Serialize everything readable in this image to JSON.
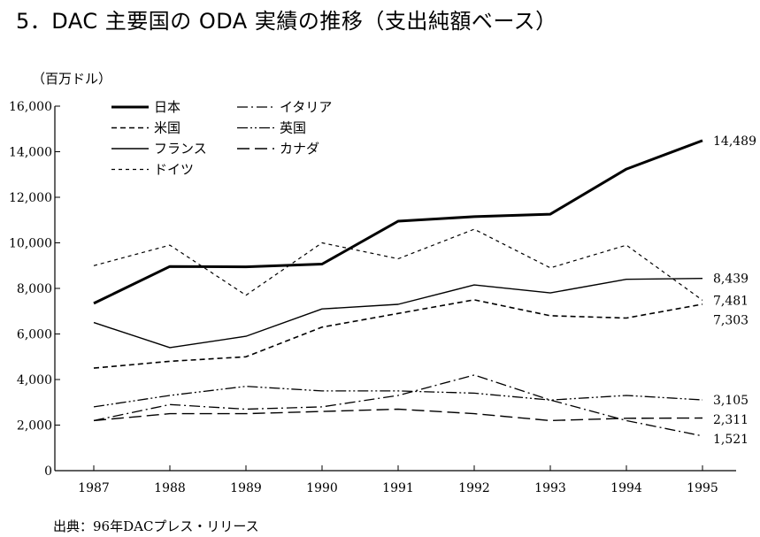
{
  "page": {
    "title": "5．DAC 主要国の ODA 実績の推移（支出純額ベース）",
    "unit_label": "（百万ドル）",
    "source": "出典：96年DACプレス・リリース"
  },
  "chart_data": {
    "type": "line",
    "title": "5．DAC 主要国の ODA 実績の推移（支出純額ベース）",
    "ylabel": "（百万ドル）",
    "xlabel": "",
    "x": [
      1987,
      1988,
      1989,
      1990,
      1991,
      1992,
      1993,
      1994,
      1995
    ],
    "xtick_labels": [
      "1987",
      "1988",
      "1989",
      "1990",
      "1991",
      "1992",
      "1993",
      "1994",
      "1995"
    ],
    "ylim": [
      0,
      16000
    ],
    "yticks": [
      0,
      2000,
      4000,
      6000,
      8000,
      10000,
      12000,
      14000,
      16000
    ],
    "ytick_labels": [
      "0",
      "2,000",
      "4,000",
      "6,000",
      "8,000",
      "10,000",
      "12,000",
      "14,000",
      "16,000"
    ],
    "grid": false,
    "legend_position": "top-left",
    "series": [
      {
        "name": "日本",
        "style": "thick-solid",
        "end_label": "14,489",
        "values": [
          7342,
          8965,
          8949,
          9069,
          10952,
          11151,
          11259,
          13239,
          14489
        ]
      },
      {
        "name": "米国",
        "style": "dashed",
        "end_label": "7,303",
        "values": [
          4500,
          4800,
          5000,
          6300,
          6900,
          7500,
          6800,
          6700,
          7303
        ]
      },
      {
        "name": "フランス",
        "style": "thin-solid",
        "end_label": "8,439",
        "values": [
          6500,
          5400,
          5900,
          7100,
          7300,
          8150,
          7800,
          8400,
          8439
        ]
      },
      {
        "name": "ドイツ",
        "style": "fine-dashed",
        "end_label": "7,481",
        "values": [
          9000,
          9900,
          7700,
          10000,
          9300,
          10600,
          8900,
          9900,
          7481
        ]
      },
      {
        "name": "イタリア",
        "style": "dash-dot",
        "end_label": "1,521",
        "values": [
          2200,
          2900,
          2700,
          2800,
          3300,
          4200,
          3100,
          2200,
          1521
        ]
      },
      {
        "name": "英国",
        "style": "dash-dot-dot",
        "end_label": "3,105",
        "values": [
          2800,
          3300,
          3700,
          3500,
          3500,
          3400,
          3100,
          3300,
          3105
        ]
      },
      {
        "name": "カナダ",
        "style": "long-dash",
        "end_label": "2,311",
        "values": [
          2200,
          2500,
          2500,
          2600,
          2700,
          2500,
          2200,
          2300,
          2311
        ]
      }
    ]
  }
}
